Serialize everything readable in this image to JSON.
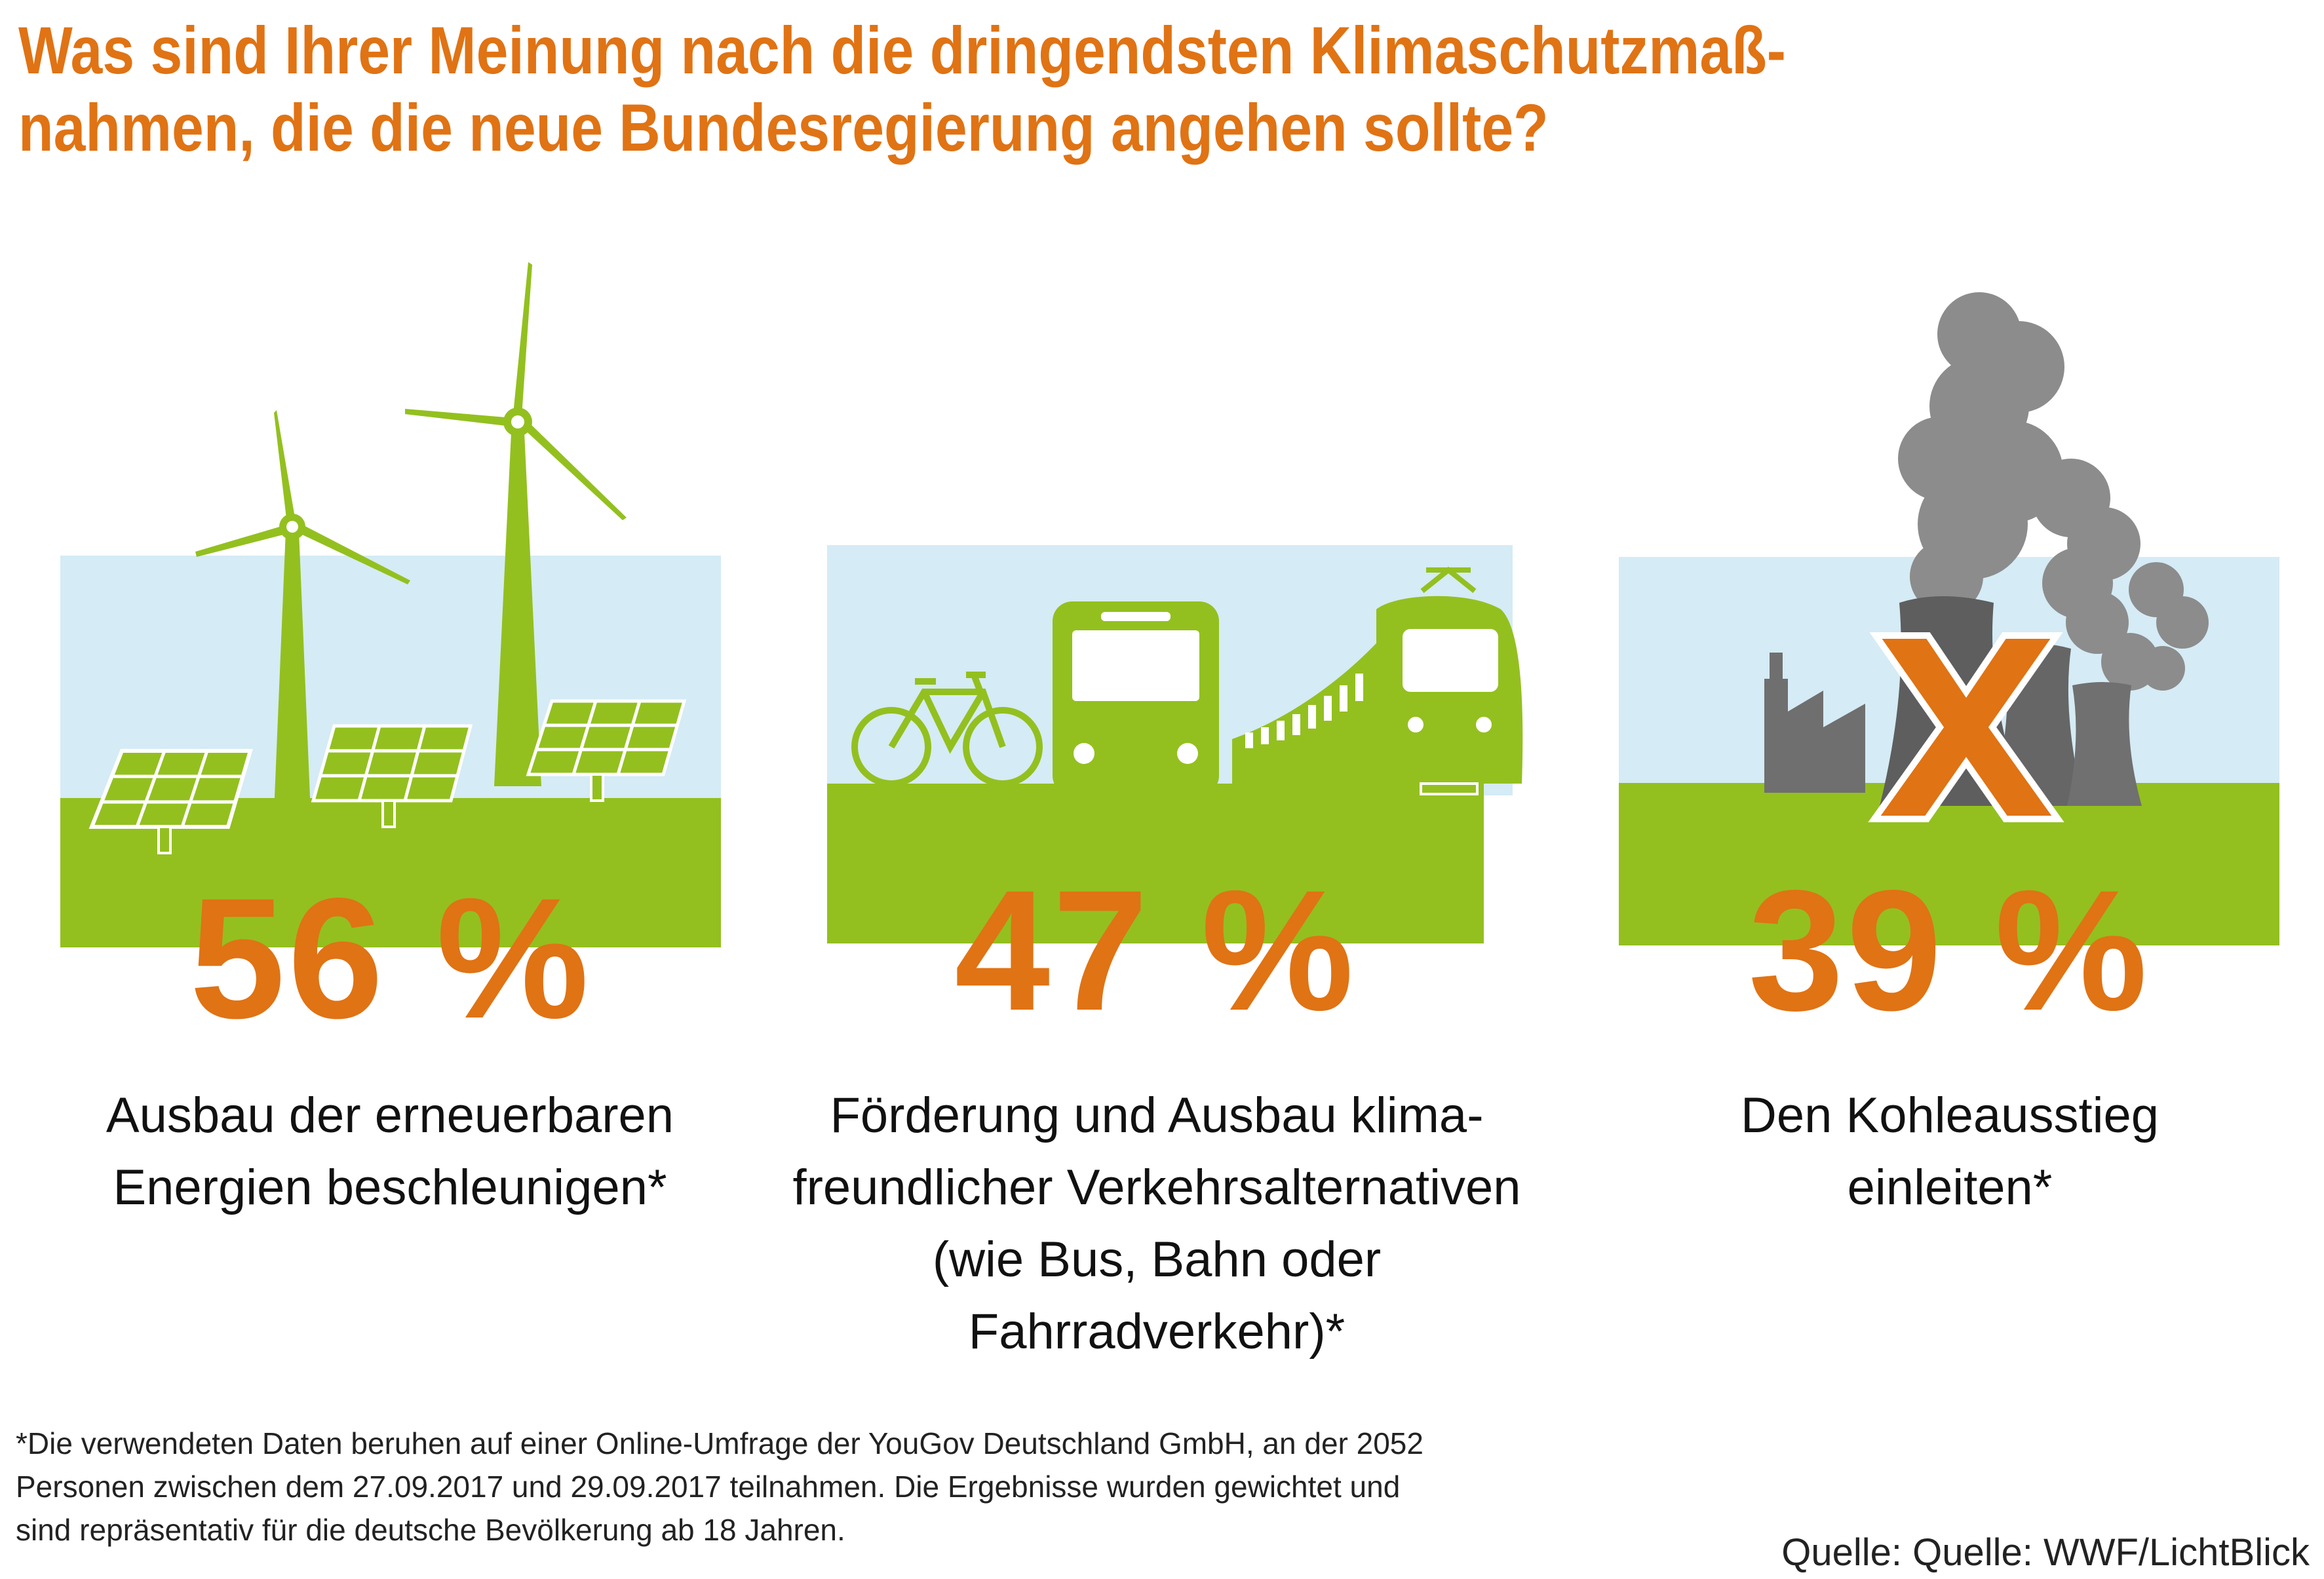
{
  "title": "Was sind Ihrer Meinung nach die dringendsten Klimaschutzmaß-\nnahmen, die die neue Bundesregierung angehen sollte?",
  "colors": {
    "accent": "#e07314",
    "green": "#93c01f",
    "sky": "#d5ebf5",
    "gray": "#808080"
  },
  "chart_data": {
    "type": "bar",
    "categories": [
      "Ausbau der erneuerbaren Energien beschleunigen*",
      "Förderung und Ausbau klimafreundlicher Verkehrsalternativen (wie Bus, Bahn oder Fahrradverkehr)*",
      "Den Kohleausstieg einleiten*"
    ],
    "values": [
      56,
      47,
      39
    ],
    "unit": "%"
  },
  "items": [
    {
      "value_label": "56 %",
      "label_line1": "Ausbau der erneuerbaren",
      "label_line2": "Energien beschleunigen*",
      "icon": "wind-solar-icon"
    },
    {
      "value_label": "47 %",
      "label_line1": "Förderung und Ausbau klima-",
      "label_line2": "freundlicher Verkehrsalternativen",
      "label_sub": "(wie Bus, Bahn oder Fahrradverkehr)*",
      "icon": "transport-icon"
    },
    {
      "value_label": "39 %",
      "label_line1": "Den Kohleausstieg",
      "label_line2": "einleiten*",
      "icon": "coal-plant-crossed-icon"
    }
  ],
  "footnote": "*Die verwendeten Daten beruhen auf einer Online-Umfrage der YouGov Deutschland GmbH, an der 2052\n  Personen zwischen dem 27.09.2017 und 29.09.2017 teilnahmen. Die Ergebnisse wurden gewichtet und\n  sind repräsentativ für die deutsche Bevölkerung ab 18 Jahren.",
  "source": "Quelle: Quelle: WWF/LichtBlick"
}
